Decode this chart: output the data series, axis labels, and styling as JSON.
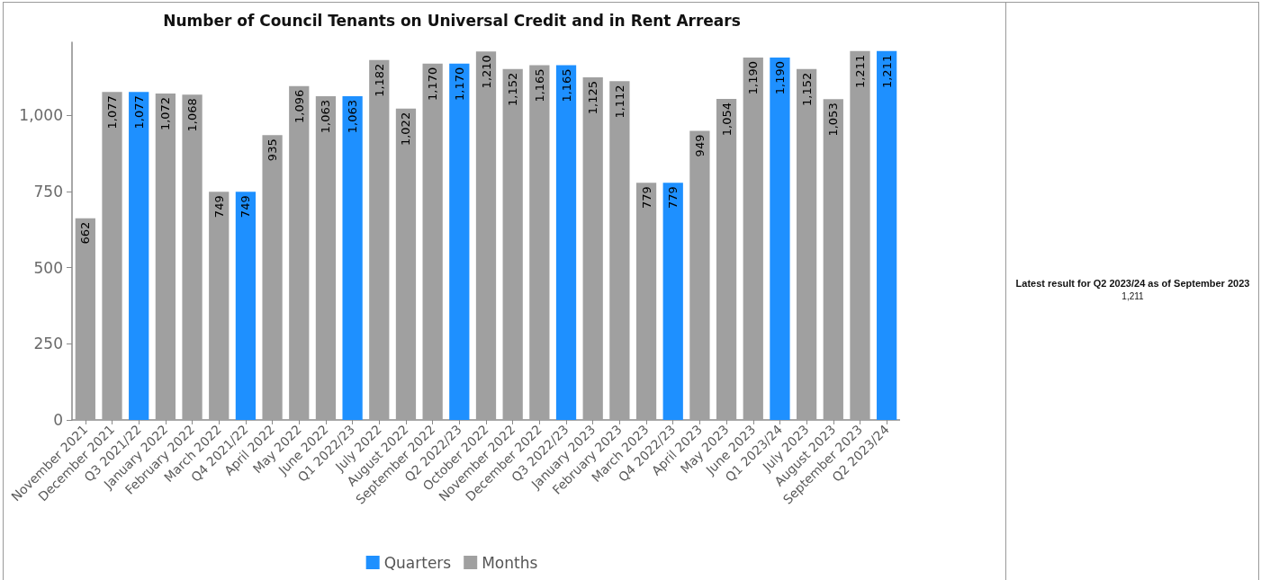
{
  "chart_data": [
    {
      "type": "bar",
      "title": "Number of Council Tenants on Universal Credit and in Rent Arrears",
      "categories": [
        "November 2021",
        "December 2021",
        "Q3 2021/22",
        "January 2022",
        "February 2022",
        "March 2022",
        "Q4 2021/22",
        "April 2022",
        "May 2022",
        "June 2022",
        "Q1 2022/23",
        "July 2022",
        "August 2022",
        "September 2022",
        "Q2 2022/23",
        "October 2022",
        "November 2022",
        "December 2022",
        "Q3 2022/23",
        "January 2023",
        "February 2023",
        "March 2023",
        "Q4 2022/23",
        "April 2023",
        "May 2023",
        "June 2023",
        "Q1 2023/24",
        "July 2023",
        "August 2023",
        "September 2023",
        "Q2 2023/24"
      ],
      "series": [
        {
          "name": "Quarters",
          "color": "#1e90ff",
          "values": [
            null,
            null,
            1077,
            null,
            null,
            null,
            749,
            null,
            null,
            null,
            1063,
            null,
            null,
            null,
            1170,
            null,
            null,
            null,
            1165,
            null,
            null,
            null,
            779,
            null,
            null,
            null,
            1190,
            null,
            null,
            null,
            1211
          ],
          "value_labels": [
            null,
            null,
            "1,077",
            null,
            null,
            null,
            "749",
            null,
            null,
            null,
            "1,063",
            null,
            null,
            null,
            "1,170",
            null,
            null,
            null,
            "1,165",
            null,
            null,
            null,
            "779",
            null,
            null,
            null,
            "1,190",
            null,
            null,
            null,
            "1,211"
          ]
        },
        {
          "name": "Months",
          "color": "#a0a0a0",
          "values": [
            662,
            1077,
            null,
            1072,
            1068,
            749,
            null,
            935,
            1096,
            1063,
            null,
            1182,
            1022,
            1170,
            null,
            1210,
            1152,
            1165,
            null,
            1125,
            1112,
            779,
            null,
            949,
            1054,
            1190,
            null,
            1152,
            1053,
            1211,
            null
          ],
          "value_labels": [
            "662",
            "1,077",
            null,
            "1,072",
            "1,068",
            "749",
            null,
            "935",
            "1,096",
            "1,063",
            null,
            "1,182",
            "1,022",
            "1,170",
            null,
            "1,210",
            "1,152",
            "1,165",
            null,
            "1,125",
            "1,112",
            "779",
            null,
            "949",
            "1,054",
            "1,190",
            null,
            "1,152",
            "1,053",
            "1,211",
            null
          ]
        }
      ],
      "ylim": [
        0,
        1240
      ],
      "yticks": [
        0,
        250,
        500,
        750,
        {
          "value": 1000,
          "label": "1,000"
        }
      ],
      "legend": "bottom"
    },
    {
      "type": "other",
      "title": "Latest result for Q2 2023/24 as of September 2023",
      "annotations": [
        "1,211"
      ]
    }
  ]
}
